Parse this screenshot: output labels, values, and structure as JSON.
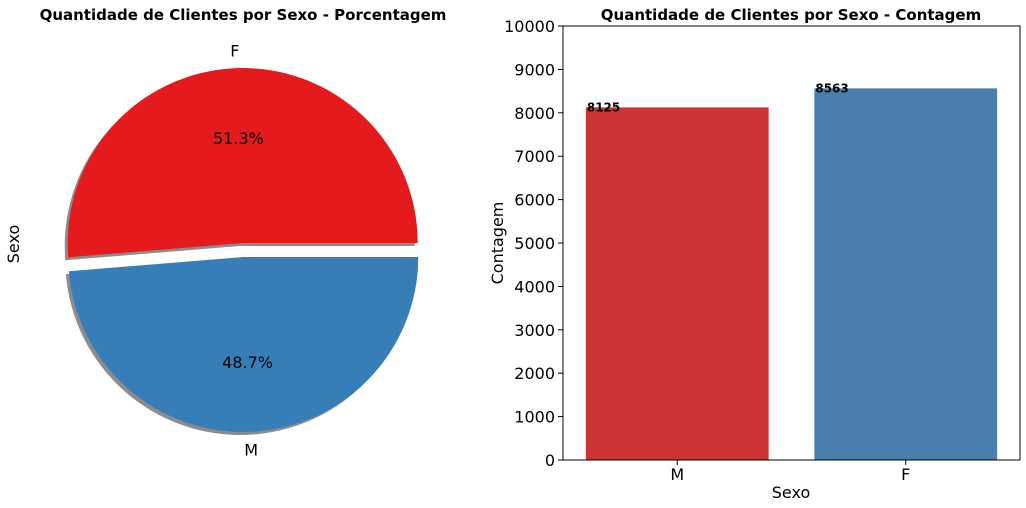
{
  "chart_data": [
    {
      "type": "pie",
      "title": "Quantidade de Clientes por Sexo - Porcentagem",
      "ylabel": "Sexo",
      "labels": [
        "F",
        "M"
      ],
      "values": [
        51.3,
        48.7
      ],
      "value_labels": [
        "51.3%",
        "48.7%"
      ],
      "colors": [
        "#e41a1c",
        "#377eb8"
      ],
      "explode": true,
      "shadow": true
    },
    {
      "type": "bar",
      "title": "Quantidade de Clientes por Sexo - Contagem",
      "xlabel": "Sexo",
      "ylabel": "Contagem",
      "categories": [
        "M",
        "F"
      ],
      "values": [
        8125,
        8563
      ],
      "colors": [
        "#cc3333",
        "#4a7fad"
      ],
      "ylim": [
        0,
        10000
      ],
      "yticks": [
        0,
        1000,
        2000,
        3000,
        4000,
        5000,
        6000,
        7000,
        8000,
        9000,
        10000
      ],
      "grid": false
    }
  ]
}
